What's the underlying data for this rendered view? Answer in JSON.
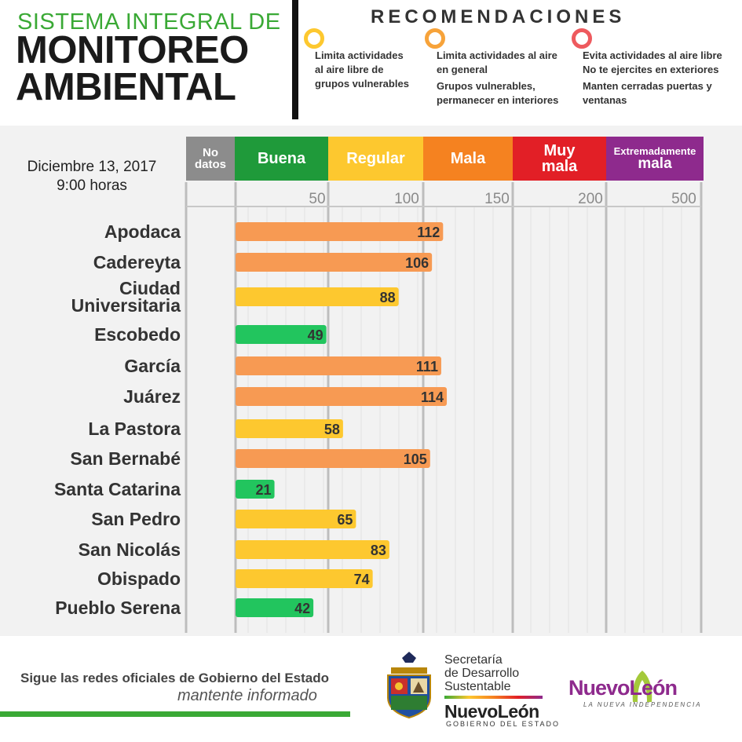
{
  "header": {
    "title_line1": "SISTEMA INTEGRAL DE",
    "title_line2": "MONITOREO",
    "title_line3": "AMBIENTAL"
  },
  "recommendations": {
    "title": "RECOMENDACIONES",
    "items": [
      {
        "color": "#fdc82f",
        "lines": [
          "Limita actividades",
          "al aire libre de",
          "grupos vulnerables"
        ]
      },
      {
        "color": "#f7a33a",
        "lines": [
          "Limita actividades al aire",
          "en general",
          "Grupos vulnerables,",
          "permanecer en interiores"
        ]
      },
      {
        "color": "#ee5a5e",
        "lines": [
          "Evita actividades al aire libre",
          "No te ejercites en exteriores",
          "Manten cerradas puertas y",
          "ventanas"
        ]
      }
    ]
  },
  "date": {
    "line1": "Diciembre 13, 2017",
    "line2": "9:00 horas"
  },
  "categories": [
    {
      "line1": "No",
      "line2": "datos",
      "color": "#8c8c8c"
    },
    {
      "line1": "Buena",
      "line2": "",
      "color": "#1f9a3a"
    },
    {
      "line1": "Regular",
      "line2": "",
      "color": "#fdc82f"
    },
    {
      "line1": "Mala",
      "line2": "",
      "color": "#f58220"
    },
    {
      "line1": "Muy",
      "line2": "mala",
      "color": "#e21f26"
    },
    {
      "line1": "Extremadamente",
      "line2": "mala",
      "color": "#8e2a8d"
    }
  ],
  "chart_data": {
    "type": "bar",
    "orientation": "horizontal",
    "categories": [
      "Apodaca",
      "Cadereyta",
      "Ciudad Universitaria",
      "Escobedo",
      "García",
      "Juárez",
      "La Pastora",
      "San Bernabé",
      "Santa Catarina",
      "San Pedro",
      "San Nicolás",
      "Obispado",
      "Pueblo Serena"
    ],
    "category_lines": [
      [
        "Apodaca"
      ],
      [
        "Cadereyta"
      ],
      [
        "Ciudad",
        "Universitaria"
      ],
      [
        "Escobedo"
      ],
      [
        "García"
      ],
      [
        "Juárez"
      ],
      [
        "La Pastora"
      ],
      [
        "San Bernabé"
      ],
      [
        "Santa Catarina"
      ],
      [
        "San Pedro"
      ],
      [
        "San Nicolás"
      ],
      [
        "Obispado"
      ],
      [
        "Pueblo Serena"
      ]
    ],
    "values": [
      112,
      106,
      88,
      49,
      111,
      114,
      58,
      105,
      21,
      65,
      83,
      74,
      42
    ],
    "x_ticks": [
      50,
      100,
      150,
      200,
      500
    ],
    "color_scale": [
      {
        "max": 50,
        "color": "#22c55e"
      },
      {
        "max": 100,
        "color": "#fdc82f"
      },
      {
        "max": 150,
        "color": "#f79a53"
      }
    ],
    "grid": true
  },
  "footer": {
    "social_line1": "Sigue las redes oficiales de Gobierno del Estado",
    "social_line2": "mantente informado",
    "sds_lines": [
      "Secretaría",
      "de Desarrollo",
      "Sustentable"
    ],
    "nl_text": "NuevoLeón",
    "nl_sub": "GOBIERNO DEL ESTADO",
    "nl_logo": "NuevoLeón",
    "nl_logo_sub": "LA NUEVA INDEPENDENCIA"
  }
}
